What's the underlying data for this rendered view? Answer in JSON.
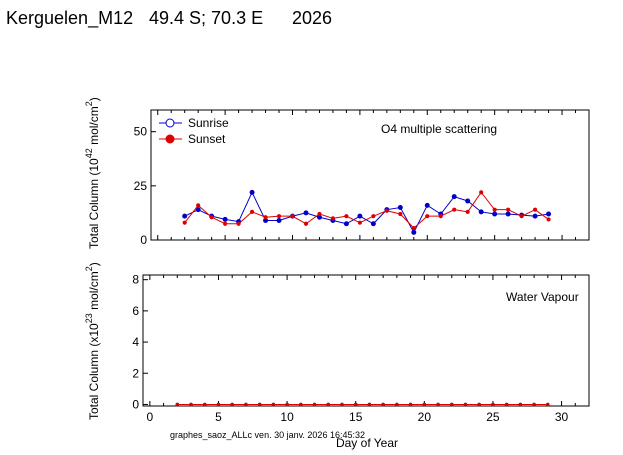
{
  "header": {
    "station": "Kerguelen_M12",
    "coords": "49.4 S; 70.3 E",
    "year": "2026"
  },
  "footer": "graphes_saoz_ALLc ven. 30 janv. 2026 16:45:32",
  "colors": {
    "sunrise": "#0000cc",
    "sunset": "#dd0000",
    "axis": "#000000"
  },
  "chart_data": [
    {
      "type": "line",
      "annotation": "O4 multiple scattering",
      "ylabel": "Total Column (10^42 mol/cm^2)",
      "xlabel": "",
      "xlim": [
        -0.5,
        32
      ],
      "ylim": [
        0,
        60
      ],
      "yticks": [
        0,
        25,
        50
      ],
      "xticks": [
        0,
        5,
        10,
        15,
        20,
        25,
        30
      ],
      "show_xtick_labels": false,
      "legend": "top-left",
      "series": [
        {
          "name": "Sunrise",
          "x": [
            2,
            3,
            4,
            5,
            6,
            7,
            8,
            9,
            10,
            11,
            12,
            13,
            14,
            15,
            16,
            17,
            18,
            19,
            20,
            21,
            22,
            23,
            24,
            25,
            26,
            27,
            28,
            29
          ],
          "values": [
            11,
            14,
            11,
            9.5,
            8.5,
            22,
            9,
            9,
            11,
            12.5,
            10.5,
            9,
            7.5,
            11,
            7.5,
            14,
            15,
            3.5,
            16,
            12,
            20,
            18,
            13,
            12,
            12,
            11.5,
            11,
            12
          ]
        },
        {
          "name": "Sunset",
          "x": [
            2,
            3,
            4,
            5,
            6,
            7,
            8,
            9,
            10,
            11,
            12,
            13,
            14,
            15,
            16,
            17,
            18,
            19,
            20,
            21,
            22,
            23,
            24,
            25,
            26,
            27,
            28,
            29
          ],
          "values": [
            8,
            16,
            10.5,
            7.5,
            7.5,
            13,
            10.5,
            11,
            11,
            7.5,
            12,
            10,
            11,
            8,
            11,
            13.5,
            12,
            5.5,
            11,
            11,
            14,
            13,
            22,
            14,
            14,
            11,
            14,
            9.5
          ]
        }
      ]
    },
    {
      "type": "line",
      "annotation": "Water Vapour",
      "ylabel": "Total Column (x10^23 mol/cm^2)",
      "xlabel": "Day of Year",
      "xlim": [
        -0.5,
        32
      ],
      "ylim": [
        -0.1,
        8.3
      ],
      "yticks": [
        0,
        2,
        4,
        6,
        8
      ],
      "xticks": [
        0,
        5,
        10,
        15,
        20,
        25,
        30
      ],
      "show_xtick_labels": true,
      "series": [
        {
          "name": "Sunrise",
          "x": [
            2,
            3,
            4,
            5,
            6,
            7,
            8,
            9,
            10,
            11,
            12,
            13,
            14,
            15,
            16,
            17,
            18,
            19,
            20,
            21,
            22,
            23,
            24,
            25,
            26,
            27,
            28,
            29
          ],
          "values": [
            0,
            0,
            0,
            0,
            0,
            0,
            0,
            0,
            0,
            0,
            0,
            0,
            0,
            0,
            0,
            0,
            0,
            0,
            0,
            0,
            0,
            0,
            0,
            0,
            0,
            0,
            0,
            0
          ]
        },
        {
          "name": "Sunset",
          "x": [
            2,
            3,
            4,
            5,
            6,
            7,
            8,
            9,
            10,
            11,
            12,
            13,
            14,
            15,
            16,
            17,
            18,
            19,
            20,
            21,
            22,
            23,
            24,
            25,
            26,
            27,
            28,
            29
          ],
          "values": [
            0,
            0,
            0,
            0,
            0,
            0,
            0,
            0,
            0,
            0,
            0,
            0,
            0,
            0,
            0,
            0,
            0,
            0,
            0,
            0,
            0,
            0,
            0,
            0,
            0,
            0,
            0,
            0
          ]
        }
      ]
    }
  ]
}
